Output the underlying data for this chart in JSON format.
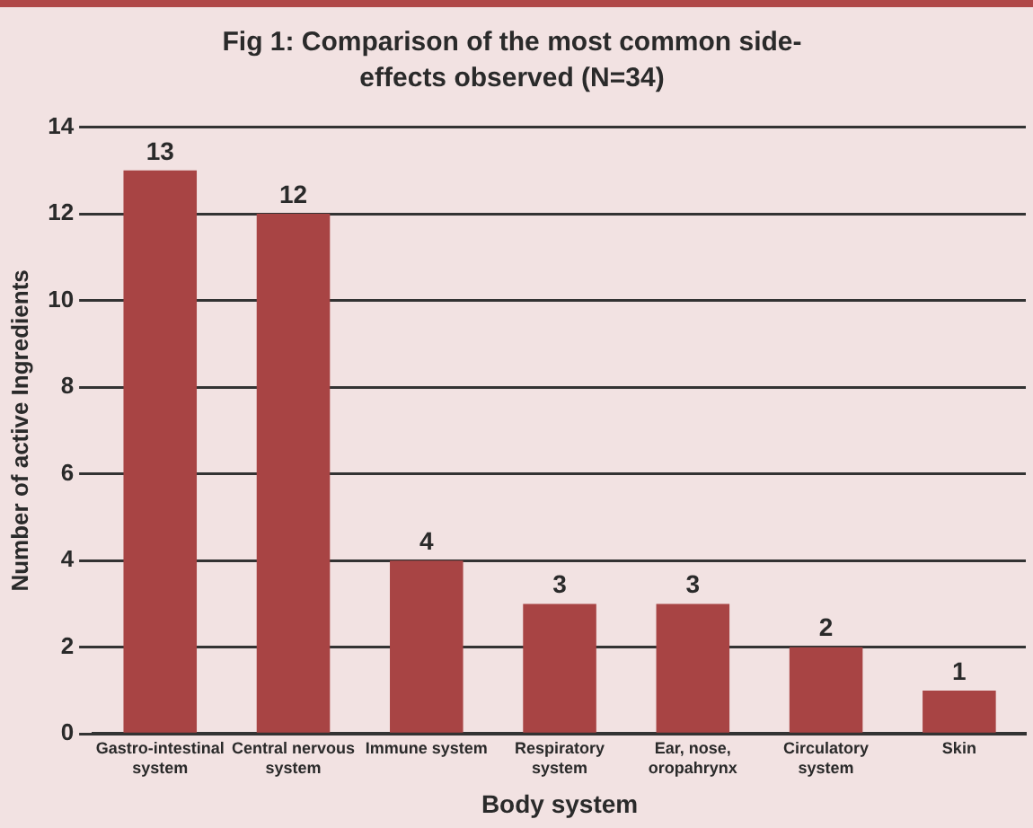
{
  "chart_data": {
    "type": "bar",
    "title": "Fig 1: Comparison of the most common side-effects observed (N=34)",
    "categories": [
      "Gastro-intestinal system",
      "Central nervous system",
      "Immune system",
      "Respiratory system",
      "Ear, nose, oropahrynx",
      "Circulatory system",
      "Skin"
    ],
    "values": [
      13,
      12,
      4,
      3,
      3,
      2,
      1
    ],
    "color": "#a84444",
    "xlabel": "Body system",
    "ylabel": "Number of active Ingredients",
    "ylim": [
      0,
      14
    ],
    "yticks": [
      0,
      2,
      4,
      6,
      8,
      10,
      12,
      14
    ],
    "grid": "y",
    "data_labels": true,
    "legend": false
  }
}
